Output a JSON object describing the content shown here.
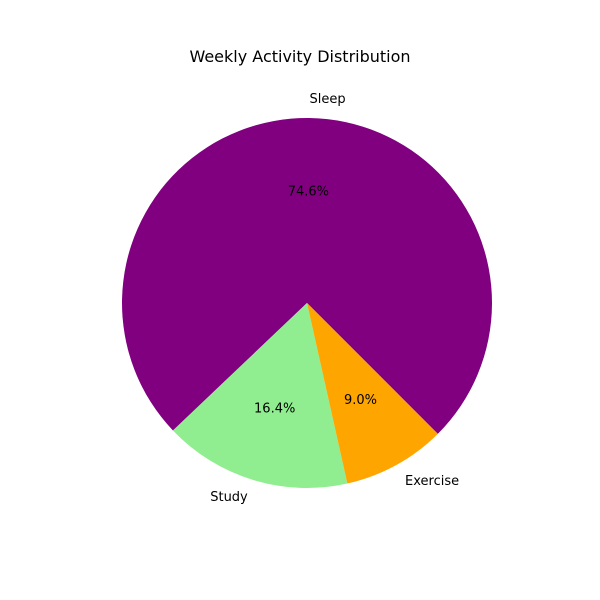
{
  "chart_data": {
    "type": "pie",
    "title": "Weekly Activity Distribution",
    "slices": [
      {
        "label": "Sleep",
        "percent": 74.6,
        "percent_label": "74.6%",
        "color": "#800080"
      },
      {
        "label": "Study",
        "percent": 16.4,
        "percent_label": "16.4%",
        "color": "#90EE90"
      },
      {
        "label": "Exercise",
        "percent": 9.0,
        "percent_label": "9.0%",
        "color": "#FFA500"
      }
    ],
    "start_angle_deg": -45,
    "direction": "counterclockwise",
    "legend": "none"
  }
}
